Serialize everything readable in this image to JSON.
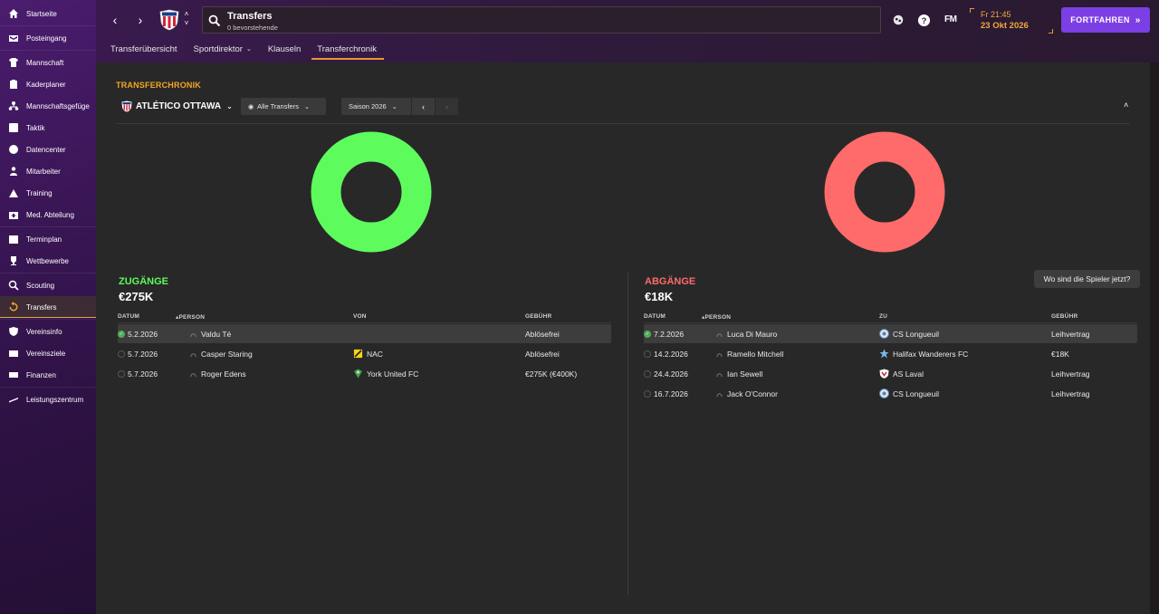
{
  "sidebar": {
    "items": [
      {
        "label": "Startseite",
        "icon": "home-icon"
      },
      {
        "label": "Posteingang",
        "icon": "inbox-icon"
      },
      {
        "label": "Mannschaft",
        "icon": "shirt-icon"
      },
      {
        "label": "Kaderplaner",
        "icon": "clipboard-icon"
      },
      {
        "label": "Mannschaftsgefüge",
        "icon": "hierarchy-icon"
      },
      {
        "label": "Taktik",
        "icon": "tactics-icon"
      },
      {
        "label": "Datencenter",
        "icon": "data-icon"
      },
      {
        "label": "Mitarbeiter",
        "icon": "staff-icon"
      },
      {
        "label": "Training",
        "icon": "training-icon"
      },
      {
        "label": "Med. Abteilung",
        "icon": "medical-icon"
      },
      {
        "label": "Terminplan",
        "icon": "calendar-icon"
      },
      {
        "label": "Wettbewerbe",
        "icon": "trophy-icon"
      },
      {
        "label": "Scouting",
        "icon": "scouting-icon"
      },
      {
        "label": "Transfers",
        "icon": "transfers-icon"
      },
      {
        "label": "Vereinsinfo",
        "icon": "shield-icon"
      },
      {
        "label": "Vereinsziele",
        "icon": "goals-icon"
      },
      {
        "label": "Finanzen",
        "icon": "finances-icon"
      },
      {
        "label": "Leistungszentrum",
        "icon": "academy-icon"
      }
    ],
    "active": "Transfers"
  },
  "header": {
    "title": "Transfers",
    "subtitle": "0 bevorstehende",
    "time": "Fr 21:45",
    "date": "23 Okt 2026",
    "continue_label": "FORTFAHREN",
    "fm_logo": "FM",
    "tabs": [
      {
        "label": "Transferübersicht",
        "dropdown": false
      },
      {
        "label": "Sportdirektor",
        "dropdown": true
      },
      {
        "label": "Klauseln",
        "dropdown": false
      },
      {
        "label": "Transferchronik",
        "dropdown": false,
        "active": true
      }
    ]
  },
  "main": {
    "section_title": "TRANSFERCHRONIK",
    "club_name": "ATLÉTICO OTTAWA",
    "filter_label": "Alle Transfers",
    "season_label": "Saison 2026",
    "where_button": "Wo sind die Spieler jetzt?",
    "colors": {
      "incoming": "#5dfc5c",
      "outgoing": "#ff6a6a",
      "accent": "#f5a623",
      "button": "#7c3fe3"
    },
    "incoming": {
      "title": "ZUGÄNGE",
      "total": "€275K",
      "headers": {
        "date": "DATUM",
        "person": "PERSON",
        "club": "VON",
        "fee": "GEBÜHR"
      },
      "rows": [
        {
          "date": "5.2.2026",
          "person": "Valdu Té",
          "club": "",
          "fee": "Ablösefrei",
          "done": true
        },
        {
          "date": "5.7.2026",
          "person": "Casper Staring",
          "club": "NAC",
          "fee": "Ablösefrei",
          "done": false
        },
        {
          "date": "5.7.2026",
          "person": "Roger Edens",
          "club": "York United FC",
          "fee": "€275K (€400K)",
          "done": false
        }
      ]
    },
    "outgoing": {
      "title": "ABGÄNGE",
      "total": "€18K",
      "headers": {
        "date": "DATUM",
        "person": "PERSON",
        "club": "ZU",
        "fee": "GEBÜHR"
      },
      "rows": [
        {
          "date": "7.2.2026",
          "person": "Luca Di Mauro",
          "club": "CS Longueuil",
          "fee": "Leihvertrag",
          "done": true
        },
        {
          "date": "14.2.2026",
          "person": "Ramello Mitchell",
          "club": "Halifax Wanderers FC",
          "fee": "€18K",
          "done": false
        },
        {
          "date": "24.4.2026",
          "person": "Ian Sewell",
          "club": "AS Laval",
          "fee": "Leihvertrag",
          "done": false
        },
        {
          "date": "16.7.2026",
          "person": "Jack O'Connor",
          "club": "CS Longueuil",
          "fee": "Leihvertrag",
          "done": false
        }
      ]
    }
  }
}
